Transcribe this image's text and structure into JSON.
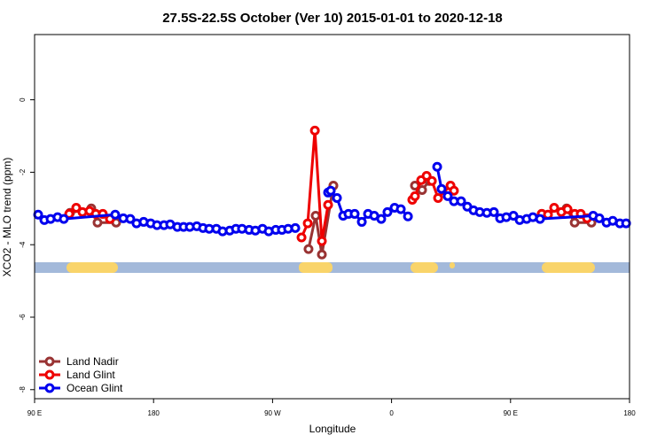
{
  "chart_data": {
    "type": "line",
    "title": "27.5S-22.5S October (Ver 10)   2015-01-01 to 2020-12-18",
    "x_label": "Longitude",
    "y_label": "XCO2 - MLO trend (ppm)",
    "xlim": [
      90,
      540
    ],
    "ylim": [
      -8.25,
      1.8
    ],
    "xticks": [
      {
        "value": 90,
        "label": "90 E"
      },
      180,
      {
        "value": 270,
        "label": "90 W"
      },
      {
        "value": 360,
        "label": "0"
      },
      {
        "value": 450,
        "label": "90 E"
      },
      {
        "value": 540,
        "label": "180"
      }
    ],
    "yticks": [
      0,
      -2,
      -4,
      -6,
      -8
    ],
    "legend": "bottom-left",
    "series": [
      {
        "name": "Land Nadir",
        "color": "#993333",
        "x": [
          116.8,
          132.9,
          137.6,
          151.7,
          null,
          297.2,
          302.6,
          307.3,
          316.0,
          null,
          377.7,
          383.1,
          388.5,
          null,
          473.6,
          492.4,
          498.5,
          511.2
        ],
        "values": [
          -3.12,
          -3.0,
          -3.39,
          -3.39,
          null,
          -4.12,
          -3.2,
          -4.27,
          -2.37,
          null,
          -2.37,
          -2.49,
          -2.24,
          null,
          -3.15,
          -3.0,
          -3.39,
          -3.39
        ]
      },
      {
        "name": "Land Glint",
        "color": "#ee0000",
        "x": [
          116.2,
          121.5,
          126.2,
          131.6,
          136.3,
          141.6,
          147.0,
          null,
          291.9,
          296.6,
          302.0,
          307.3,
          312.0,
          null,
          375.7,
          377.7,
          382.4,
          386.5,
          390.5,
          395.2,
          404.6,
          407.2,
          null,
          473.6,
          478.3,
          483.0,
          488.4,
          493.1,
          498.5,
          503.1,
          507.9
        ],
        "values": [
          -3.15,
          -2.98,
          -3.1,
          -3.07,
          -3.15,
          -3.15,
          -3.29,
          null,
          -3.8,
          -3.41,
          -0.85,
          -3.9,
          -2.9,
          null,
          -2.76,
          -2.66,
          -2.22,
          -2.1,
          -2.24,
          -2.71,
          -2.37,
          -2.51,
          null,
          -3.15,
          -3.17,
          -2.98,
          -3.1,
          -3.02,
          -3.15,
          -3.15,
          -3.27
        ]
      },
      {
        "name": "Ocean Glint",
        "color": "#0000ee",
        "x": [
          92.7,
          97.4,
          102.1,
          107.4,
          112.1,
          151.0,
          157.1,
          162.4,
          167.1,
          172.5,
          177.8,
          182.6,
          187.9,
          192.6,
          198.0,
          202.7,
          207.4,
          212.7,
          217.4,
          222.1,
          227.5,
          232.2,
          237.6,
          242.3,
          246.9,
          252.3,
          257.0,
          262.4,
          267.1,
          272.4,
          277.1,
          281.8,
          287.2,
          null,
          312.0,
          314.0,
          318.7,
          323.4,
          327.4,
          332.1,
          337.5,
          342.2,
          346.9,
          352.2,
          356.9,
          362.3,
          367.0,
          372.4,
          null,
          394.5,
          397.8,
          402.5,
          407.2,
          412.6,
          417.3,
          422.0,
          426.7,
          432.1,
          437.4,
          442.1,
          446.8,
          452.2,
          456.9,
          462.2,
          466.9,
          472.3,
          512.5,
          517.2,
          522.6,
          527.3,
          532.7,
          537.4
        ],
        "values": [
          -3.17,
          -3.32,
          -3.29,
          -3.24,
          -3.29,
          -3.17,
          -3.27,
          -3.29,
          -3.41,
          -3.37,
          -3.41,
          -3.46,
          -3.46,
          -3.44,
          -3.51,
          -3.51,
          -3.51,
          -3.49,
          -3.54,
          -3.56,
          -3.56,
          -3.63,
          -3.61,
          -3.56,
          -3.56,
          -3.59,
          -3.61,
          -3.56,
          -3.63,
          -3.59,
          -3.59,
          -3.56,
          -3.54,
          null,
          -2.56,
          -2.51,
          -2.71,
          -3.2,
          -3.15,
          -3.15,
          -3.37,
          -3.15,
          -3.2,
          -3.29,
          -3.1,
          -2.98,
          -3.02,
          -3.22,
          null,
          -1.85,
          -2.46,
          -2.66,
          -2.8,
          -2.8,
          -2.95,
          -3.05,
          -3.1,
          -3.12,
          -3.1,
          -3.27,
          -3.24,
          -3.2,
          -3.32,
          -3.29,
          -3.24,
          -3.29,
          -3.2,
          -3.27,
          -3.39,
          -3.34,
          -3.41,
          -3.41
        ]
      }
    ]
  }
}
